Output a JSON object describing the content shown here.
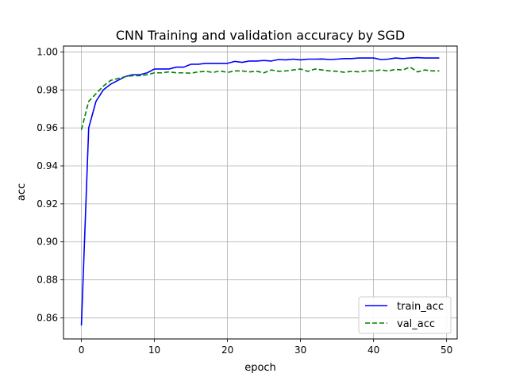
{
  "chart_data": {
    "type": "line",
    "title": "CNN Training and validation accuracy by SGD",
    "xlabel": "epoch",
    "ylabel": "acc",
    "xlim": [
      -2.45,
      51.45
    ],
    "ylim": [
      0.8489,
      1.0031
    ],
    "xticks": [
      0,
      10,
      20,
      30,
      40,
      50
    ],
    "xtick_labels": [
      "0",
      "10",
      "20",
      "30",
      "40",
      "50"
    ],
    "yticks": [
      0.86,
      0.88,
      0.9,
      0.92,
      0.94,
      0.96,
      0.98,
      1.0
    ],
    "ytick_labels": [
      "0.86",
      "0.88",
      "0.90",
      "0.92",
      "0.94",
      "0.96",
      "0.98",
      "1.00"
    ],
    "grid": true,
    "legend_position": "lower-right",
    "x": [
      0,
      1,
      2,
      3,
      4,
      5,
      6,
      7,
      8,
      9,
      10,
      11,
      12,
      13,
      14,
      15,
      16,
      17,
      18,
      19,
      20,
      21,
      22,
      23,
      24,
      25,
      26,
      27,
      28,
      29,
      30,
      31,
      32,
      33,
      34,
      35,
      36,
      37,
      38,
      39,
      40,
      41,
      42,
      43,
      44,
      45,
      46,
      47,
      48,
      49
    ],
    "series": [
      {
        "name": "train_acc",
        "color": "#0000ff",
        "dash": "solid",
        "values": [
          0.856,
          0.96,
          0.974,
          0.98,
          0.983,
          0.985,
          0.987,
          0.988,
          0.988,
          0.989,
          0.991,
          0.991,
          0.991,
          0.992,
          0.992,
          0.9935,
          0.9935,
          0.994,
          0.994,
          0.994,
          0.994,
          0.995,
          0.9945,
          0.9952,
          0.9952,
          0.9955,
          0.9952,
          0.996,
          0.9958,
          0.9962,
          0.9958,
          0.9962,
          0.9962,
          0.9963,
          0.996,
          0.9962,
          0.9965,
          0.9965,
          0.9968,
          0.9968,
          0.9968,
          0.996,
          0.9962,
          0.9968,
          0.9965,
          0.9968,
          0.997,
          0.9968,
          0.9968,
          0.9968
        ]
      },
      {
        "name": "val_acc",
        "color": "#008000",
        "dash": "dashed",
        "values": [
          0.959,
          0.974,
          0.978,
          0.982,
          0.985,
          0.986,
          0.987,
          0.9875,
          0.9875,
          0.988,
          0.989,
          0.989,
          0.9895,
          0.989,
          0.989,
          0.9888,
          0.9895,
          0.9898,
          0.9892,
          0.99,
          0.9892,
          0.99,
          0.99,
          0.9895,
          0.9898,
          0.989,
          0.9905,
          0.9898,
          0.99,
          0.9905,
          0.991,
          0.9898,
          0.991,
          0.9905,
          0.99,
          0.9898,
          0.9893,
          0.9898,
          0.9895,
          0.99,
          0.99,
          0.9905,
          0.99,
          0.9908,
          0.9905,
          0.992,
          0.9895,
          0.9905,
          0.99,
          0.99
        ]
      }
    ]
  }
}
